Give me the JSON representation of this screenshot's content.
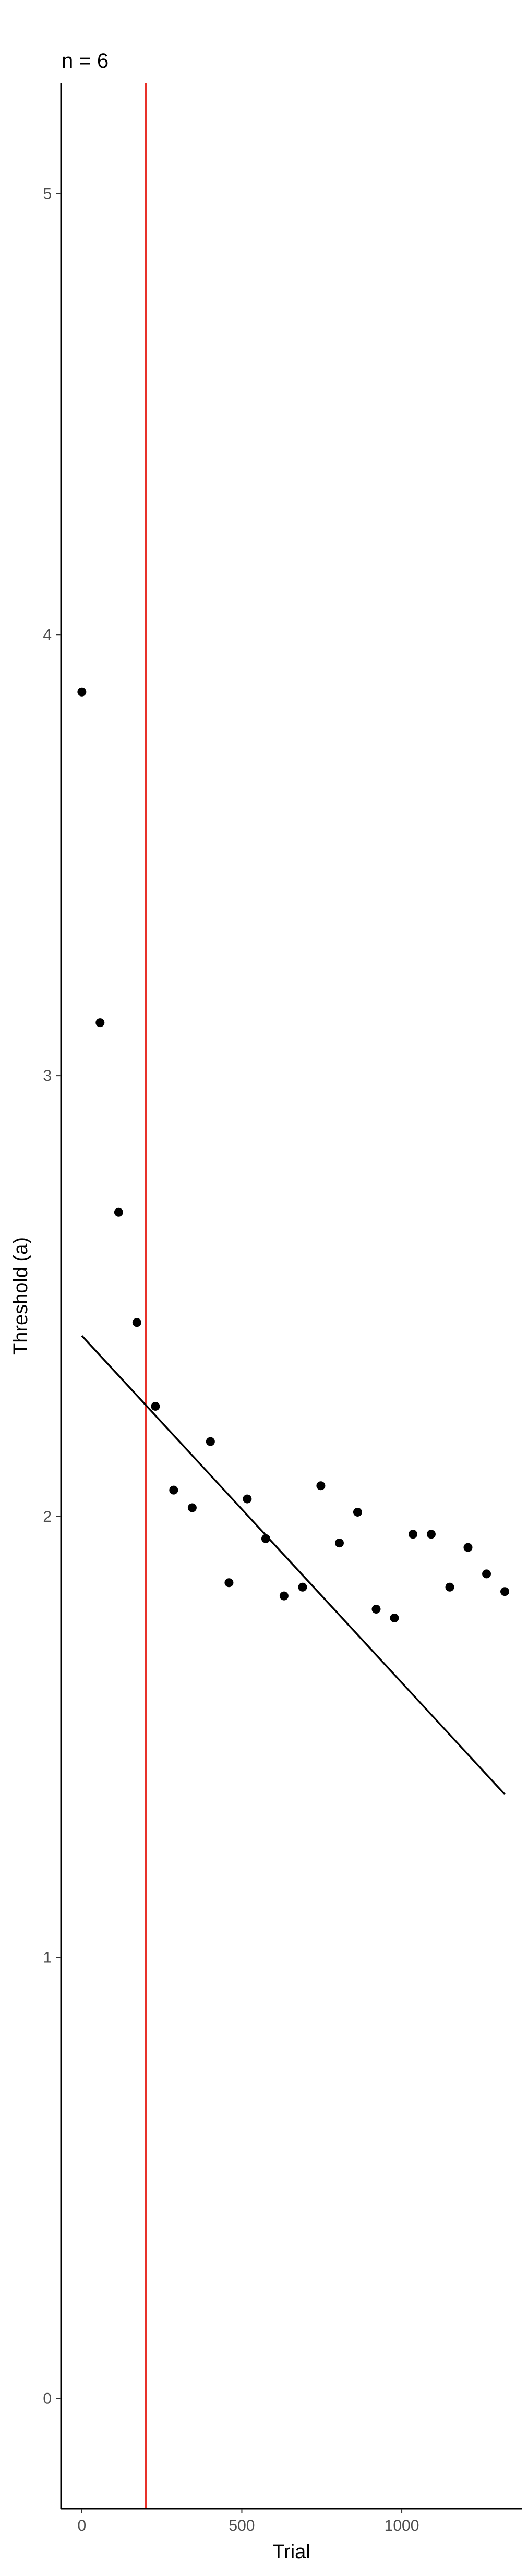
{
  "chart_data": {
    "type": "scatter",
    "title": "n = 6",
    "xlabel": "Trial",
    "ylabel": "Threshold (a)",
    "xlim": [
      -65,
      1375
    ],
    "ylim": [
      -0.25,
      5.25
    ],
    "xticks": [
      0,
      500,
      1000
    ],
    "xtick_labels": [
      "0",
      "500",
      "1000"
    ],
    "yticks": [
      0,
      1,
      2,
      3,
      4,
      5
    ],
    "ytick_labels": [
      "0",
      "1",
      "2",
      "3",
      "4",
      "5"
    ],
    "grid": false,
    "legend": "none",
    "points": {
      "x": [
        0,
        57,
        115,
        172,
        230,
        287,
        345,
        402,
        460,
        517,
        575,
        632,
        690,
        747,
        805,
        862,
        920,
        977,
        1035,
        1092,
        1150,
        1207,
        1265,
        1322
      ],
      "y": [
        3.87,
        3.12,
        2.69,
        2.44,
        2.25,
        2.06,
        2.02,
        2.17,
        1.85,
        2.04,
        1.95,
        1.82,
        1.84,
        2.07,
        1.94,
        2.01,
        1.79,
        1.77,
        1.96,
        1.96,
        1.84,
        1.93,
        1.87,
        1.83
      ],
      "color": "#000000"
    },
    "trend_line": {
      "x": [
        0,
        1322
      ],
      "y": [
        2.41,
        1.37
      ],
      "color": "#000000"
    },
    "vline": {
      "x": 200,
      "color": "#e8312a"
    }
  }
}
